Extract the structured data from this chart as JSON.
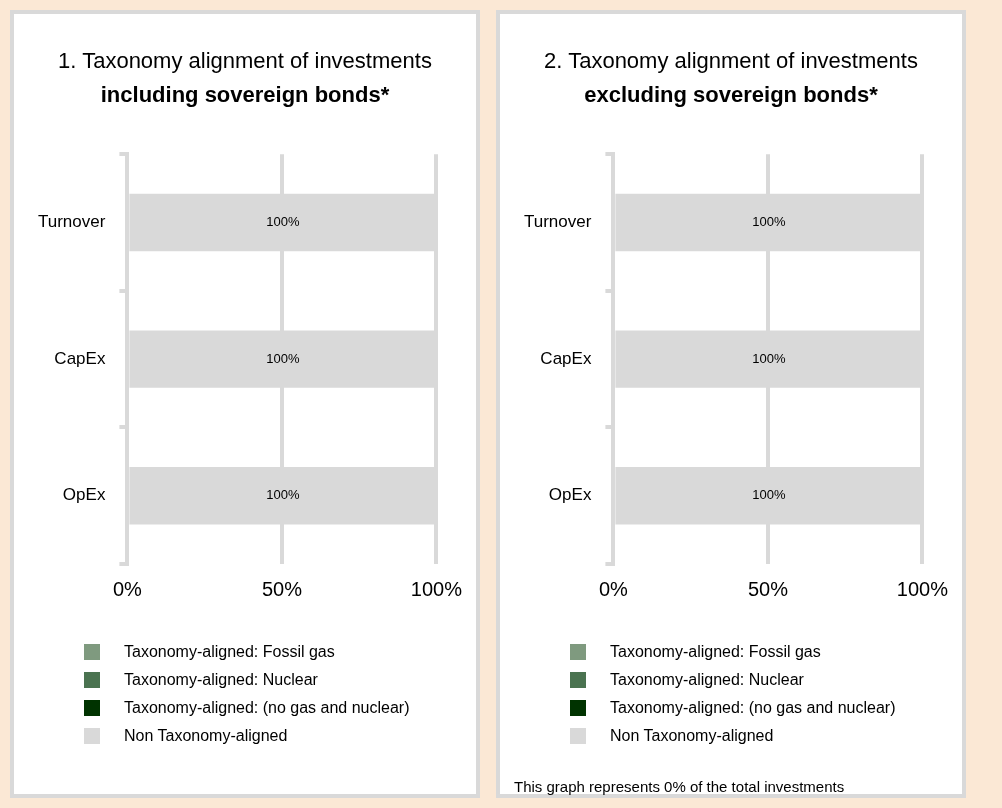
{
  "chart_data": [
    {
      "type": "bar",
      "title": "1. Taxonomy alignment of investments",
      "subtitle": "including sovereign bonds*",
      "orientation": "horizontal",
      "stacked": true,
      "categories": [
        "Turnover",
        "CapEx",
        "OpEx"
      ],
      "series": [
        {
          "name": "Taxonomy-aligned: Fossil gas",
          "color": "#7f9a7f",
          "values": [
            0,
            0,
            0
          ]
        },
        {
          "name": "Taxonomy-aligned: Nuclear",
          "color": "#4a7350",
          "values": [
            0,
            0,
            0
          ]
        },
        {
          "name": "Taxonomy-aligned: (no gas and nuclear)",
          "color": "#003300",
          "values": [
            0,
            0,
            0
          ]
        },
        {
          "name": "Non Taxonomy-aligned",
          "color": "#d9d9d9",
          "values": [
            100,
            100,
            100
          ],
          "value_labels": [
            "100%",
            "100%",
            "100%"
          ]
        }
      ],
      "xlim": [
        0,
        100
      ],
      "xticks": [
        {
          "value": 0,
          "label": "0%"
        },
        {
          "value": 50,
          "label": "50%"
        },
        {
          "value": 100,
          "label": "100%"
        }
      ],
      "grid": "x",
      "legend": "bottom"
    },
    {
      "type": "bar",
      "title": "2. Taxonomy alignment of investments",
      "subtitle": "excluding sovereign bonds*",
      "orientation": "horizontal",
      "stacked": true,
      "categories": [
        "Turnover",
        "CapEx",
        "OpEx"
      ],
      "series": [
        {
          "name": "Taxonomy-aligned: Fossil gas",
          "color": "#7f9a7f",
          "values": [
            0,
            0,
            0
          ]
        },
        {
          "name": "Taxonomy-aligned: Nuclear",
          "color": "#4a7350",
          "values": [
            0,
            0,
            0
          ]
        },
        {
          "name": "Taxonomy-aligned: (no gas and nuclear)",
          "color": "#003300",
          "values": [
            0,
            0,
            0
          ]
        },
        {
          "name": "Non Taxonomy-aligned",
          "color": "#d9d9d9",
          "values": [
            100,
            100,
            100
          ],
          "value_labels": [
            "100%",
            "100%",
            "100%"
          ]
        }
      ],
      "xlim": [
        0,
        100
      ],
      "xticks": [
        {
          "value": 0,
          "label": "0%"
        },
        {
          "value": 50,
          "label": "50%"
        },
        {
          "value": 100,
          "label": "100%"
        }
      ],
      "grid": "x",
      "legend": "bottom",
      "annotations": [
        "This graph represents 0% of the total investments"
      ]
    }
  ]
}
